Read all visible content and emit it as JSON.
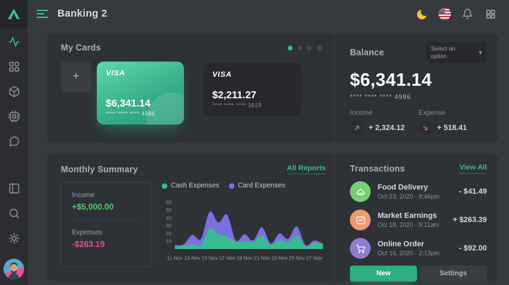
{
  "topbar": {
    "title": "Banking 2",
    "icons": [
      "moon-icon",
      "us-flag-icon",
      "bell-icon",
      "apps-grid-icon"
    ]
  },
  "sidebar": {
    "icons": [
      "activity",
      "dashboard",
      "package",
      "cpu",
      "chat",
      "layout",
      "search",
      "settings",
      "avatar"
    ]
  },
  "my_cards": {
    "title": "My Cards",
    "add_label": "+",
    "dots": 4,
    "active_dot": 0,
    "cards": [
      {
        "brand": "VISA",
        "amount": "$6,341.14",
        "number": "**** **** **** 4986",
        "variant": "green"
      },
      {
        "brand": "VISA",
        "amount": "$2,211.27",
        "number": "**** **** **** 3619",
        "variant": "dark"
      }
    ]
  },
  "balance": {
    "title": "Balance",
    "dropdown": "Select an option",
    "amount": "$6,341.14",
    "number": "**** **** **** 4986",
    "income_label": "Income",
    "income_value": "+ 2,324.12",
    "expense_label": "Expense",
    "expense_value": "+ 518.41"
  },
  "monthly": {
    "title": "Monthly Summary",
    "link": "All Reports",
    "income_label": "Income",
    "income_value": "+$5,000.00",
    "expenses_label": "Expenses",
    "expenses_value": "-$263.19"
  },
  "chart_data": {
    "type": "area",
    "stacked": true,
    "x": [
      11,
      12,
      13,
      14,
      15,
      16,
      17,
      18,
      19,
      20,
      21,
      22,
      23,
      24,
      25,
      26,
      27,
      28
    ],
    "x_unit": "Nov",
    "series": [
      {
        "name": "Cash Expenses",
        "color": "#36bd8f",
        "values": [
          3,
          4,
          6,
          5,
          26,
          19,
          16,
          9,
          10,
          9,
          17,
          5,
          11,
          9,
          17,
          3,
          8,
          6
        ]
      },
      {
        "name": "Card Expenses",
        "color": "#7b70e0",
        "values": [
          2,
          2,
          12,
          8,
          22,
          15,
          28,
          2,
          9,
          2,
          11,
          2,
          9,
          4,
          12,
          2,
          3,
          1
        ]
      }
    ],
    "yticks": [
      10,
      20,
      30,
      40,
      50,
      60
    ],
    "ylim": [
      0,
      65
    ],
    "xtick_days": [
      11,
      13,
      15,
      17,
      19,
      21,
      23,
      25,
      27
    ],
    "xtick_labels": [
      "11 Nov",
      "13 Nov",
      "15 Nov",
      "17 Nov",
      "19 Nov",
      "21 Nov",
      "23 Nov",
      "25 Nov",
      "27 Nov"
    ],
    "legend_position": "top",
    "grid": false
  },
  "transactions": {
    "title": "Transactions",
    "link": "View All",
    "items": [
      {
        "name": "Food Delivery",
        "date": "Oct 23, 2020 - 8:46pm",
        "amount": "- $41.49",
        "icon": "food-dome-icon",
        "color": "#77cf70"
      },
      {
        "name": "Market Earnings",
        "date": "Oct 18, 2020 - 9:11am",
        "amount": "+ $263.39",
        "icon": "chart-frame-icon",
        "color": "#ef9a6e"
      },
      {
        "name": "Online Order",
        "date": "Oct 16, 2020 - 2:13pm",
        "amount": "- $92.00",
        "icon": "shopping-cart-icon",
        "color": "#8e7cd0"
      }
    ],
    "buttons": {
      "new": "New",
      "settings": "Settings"
    }
  },
  "colors": {
    "accent_green": "#2eae80",
    "link_green": "#3bbd8d",
    "income_green": "#57c878",
    "expense_pink": "#d8569f",
    "chart_cash": "#36bd8f",
    "chart_card": "#7b70e0",
    "panel_bg": "#2e3135",
    "page_bg": "#36393e",
    "sidebar_bg": "#2b2d31",
    "card_dark": "#26282c",
    "moon_yellow": "#f0c242"
  }
}
